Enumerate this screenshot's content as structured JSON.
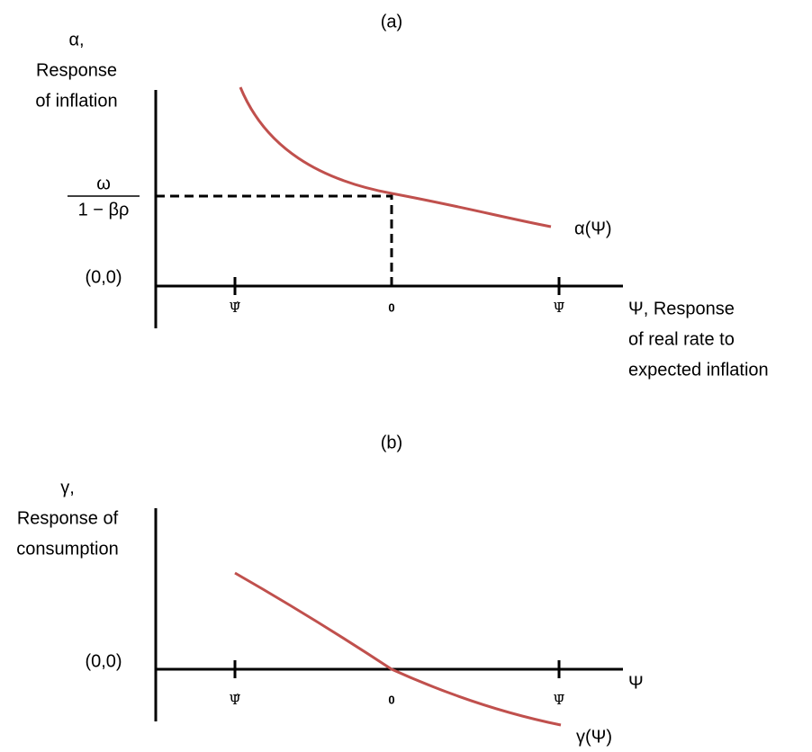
{
  "panels": [
    {
      "label": "(a)",
      "y_axis_label": [
        "α,",
        "Response",
        "of inflation"
      ],
      "y_level_label": {
        "numerator": "ω",
        "denominator": "1 − βρ"
      },
      "origin_label": "(0,0)",
      "x_tick_labels": [
        "Ψ̂",
        "0",
        "Ψ̄"
      ],
      "x_axis_label": [
        "Ψ, Response",
        "of real rate to",
        "expected inflation"
      ],
      "curve_label": "α(Ψ)"
    },
    {
      "label": "(b)",
      "y_axis_label": [
        "γ,",
        "Response of",
        "consumption"
      ],
      "origin_label": "(0,0)",
      "x_tick_labels": [
        "Ψ̂",
        "0",
        "Ψ̄"
      ],
      "x_axis_label": [
        "Ψ"
      ],
      "curve_label": "γ(Ψ)"
    }
  ]
}
